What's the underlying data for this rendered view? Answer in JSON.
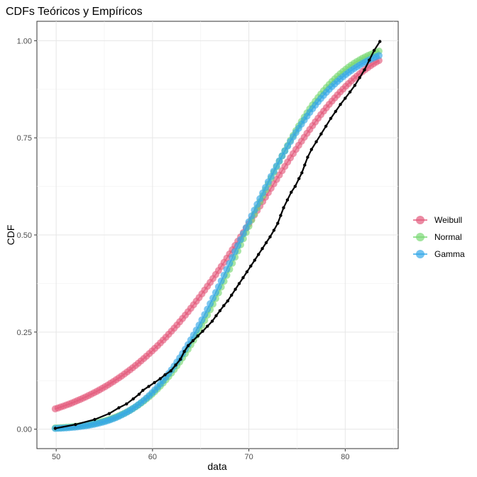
{
  "chart_data": {
    "type": "scatter",
    "title": "CDFs Teóricos y Empíricos",
    "xlabel": "data",
    "ylabel": "CDF",
    "xlim": [
      48.0,
      85.5
    ],
    "ylim": [
      -0.05,
      1.05
    ],
    "x_ticks": [
      50,
      60,
      70,
      80
    ],
    "x_tick_labels": [
      "50",
      "60",
      "70",
      "80"
    ],
    "y_ticks": [
      0.0,
      0.25,
      0.5,
      0.75,
      1.0
    ],
    "y_tick_labels": [
      "0.00",
      "0.25",
      "0.50",
      "0.75",
      "1.00"
    ],
    "grid": true,
    "legend_position": "right",
    "empirical": {
      "color": "#000000",
      "points": [
        [
          49.9,
          0.002
        ],
        [
          52.0,
          0.012
        ],
        [
          54.0,
          0.025
        ],
        [
          55.5,
          0.04
        ],
        [
          56.5,
          0.055
        ],
        [
          57.3,
          0.065
        ],
        [
          58.0,
          0.078
        ],
        [
          58.6,
          0.09
        ],
        [
          59.0,
          0.1
        ],
        [
          59.6,
          0.11
        ],
        [
          60.2,
          0.12
        ],
        [
          60.8,
          0.13
        ],
        [
          61.3,
          0.14
        ],
        [
          61.9,
          0.15
        ],
        [
          62.4,
          0.165
        ],
        [
          62.9,
          0.18
        ],
        [
          63.3,
          0.2
        ],
        [
          63.7,
          0.215
        ],
        [
          64.2,
          0.228
        ],
        [
          64.7,
          0.24
        ],
        [
          65.2,
          0.252
        ],
        [
          65.7,
          0.265
        ],
        [
          66.2,
          0.278
        ],
        [
          66.6,
          0.292
        ],
        [
          67.0,
          0.305
        ],
        [
          67.4,
          0.318
        ],
        [
          67.8,
          0.33
        ],
        [
          68.2,
          0.345
        ],
        [
          68.6,
          0.36
        ],
        [
          69.0,
          0.375
        ],
        [
          69.4,
          0.39
        ],
        [
          69.8,
          0.405
        ],
        [
          70.2,
          0.42
        ],
        [
          70.6,
          0.435
        ],
        [
          71.0,
          0.45
        ],
        [
          71.4,
          0.465
        ],
        [
          71.8,
          0.48
        ],
        [
          72.2,
          0.495
        ],
        [
          72.6,
          0.512
        ],
        [
          73.0,
          0.53
        ],
        [
          73.3,
          0.55
        ],
        [
          73.6,
          0.57
        ],
        [
          74.0,
          0.59
        ],
        [
          74.4,
          0.61
        ],
        [
          74.8,
          0.625
        ],
        [
          75.2,
          0.645
        ],
        [
          75.5,
          0.66
        ],
        [
          75.8,
          0.68
        ],
        [
          76.1,
          0.7
        ],
        [
          76.5,
          0.72
        ],
        [
          77.0,
          0.74
        ],
        [
          77.5,
          0.76
        ],
        [
          78.0,
          0.78
        ],
        [
          78.5,
          0.8
        ],
        [
          79.0,
          0.818
        ],
        [
          79.5,
          0.836
        ],
        [
          80.0,
          0.852
        ],
        [
          80.5,
          0.868
        ],
        [
          81.0,
          0.885
        ],
        [
          81.5,
          0.905
        ],
        [
          82.0,
          0.925
        ],
        [
          82.5,
          0.95
        ],
        [
          83.0,
          0.975
        ],
        [
          83.6,
          0.998
        ]
      ]
    },
    "series": [
      {
        "name": "Weibull",
        "color": "#e35a7c",
        "dist": "weibull",
        "shape": 7.8,
        "scale": 72.6
      },
      {
        "name": "Normal",
        "color": "#79d873",
        "dist": "normal",
        "mean": 69.6,
        "sd": 7.2
      },
      {
        "name": "Gamma",
        "color": "#35a8e8",
        "dist": "gamma",
        "shape": 86,
        "rate": 1.235
      }
    ],
    "x_range": [
      49.9,
      83.5
    ],
    "n_points": 118
  }
}
